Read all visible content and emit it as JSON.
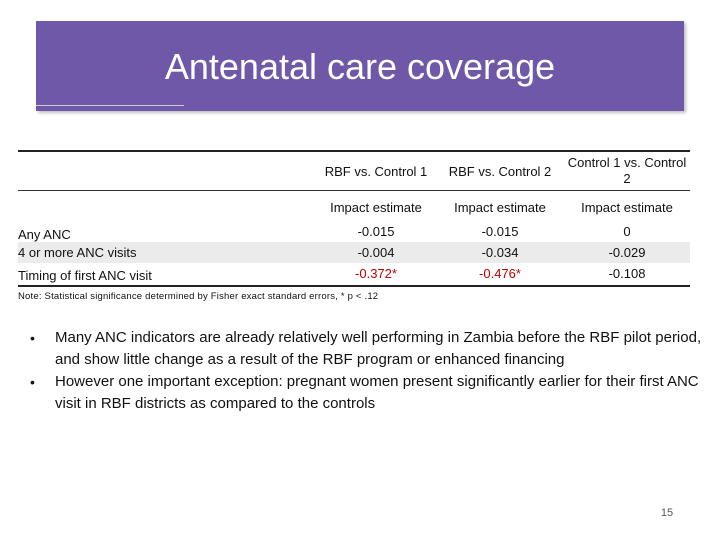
{
  "slide": {
    "title": "Antenatal care coverage",
    "slide_number": "15"
  },
  "table": {
    "columns": [
      "RBF vs. Control 1",
      "RBF vs. Control 2",
      "Control 1 vs. Control 2"
    ],
    "subheaders": [
      "Impact estimate",
      "Impact estimate",
      "Impact estimate"
    ],
    "rows": [
      {
        "label": "Any ANC",
        "values": [
          "-0.015",
          "-0.015",
          "0"
        ]
      },
      {
        "label": "4 or more ANC visits",
        "values": [
          "-0.004",
          "-0.034",
          "-0.029"
        ]
      },
      {
        "label": "Timing of first ANC visit",
        "values": [
          "-0.372*",
          "-0.476*",
          "-0.108"
        ]
      }
    ],
    "note": "Note: Statistical significance determined by Fisher exact standard errors, * p < .12",
    "highlight_color": "#c00000"
  },
  "bullets": [
    "Many ANC indicators are already relatively well performing in Zambia before the RBF pilot period, and show little change as a result of the RBF program or enhanced financing",
    "However one important exception: pregnant women present significantly earlier for their first ANC visit in RBF districts as compared to the controls"
  ],
  "colors": {
    "banner": "#7058a8",
    "title_text": "#ffffff"
  }
}
